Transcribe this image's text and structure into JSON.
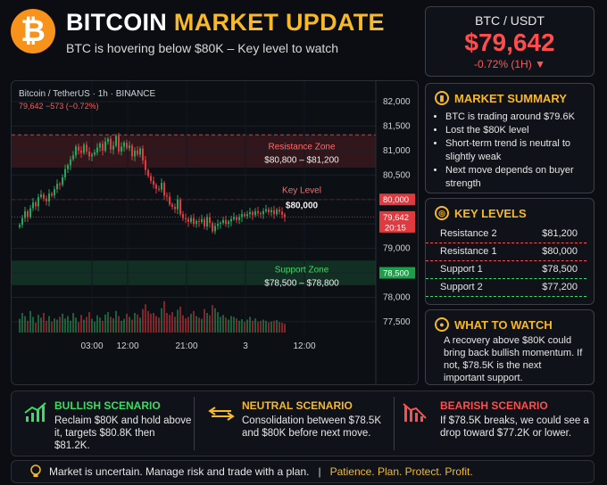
{
  "header": {
    "title_white": "BITCOIN",
    "title_yellow": "MARKET UPDATE",
    "subtitle": "BTC is hovering below $80K – Key level to watch",
    "logo_symbol": "₿"
  },
  "price_box": {
    "pair": "BTC / USDT",
    "price": "$79,642",
    "change": "-0.72% (1H)",
    "change_arrow": "▼"
  },
  "chart_header": {
    "symbol": "Bitcoin / TetherUS · 1h · BINANCE",
    "quote": "79,642  −573 (−0.72%)"
  },
  "zones": {
    "resistance_title": "Resistance Zone",
    "resistance_range": "$80,800 – $81,200",
    "key_title": "Key Level",
    "key_value": "$80,000",
    "support_title": "Support Zone",
    "support_range": "$78,500 – $78,800"
  },
  "price_tags": {
    "key": "80,000",
    "current": "79,642",
    "countdown": "20:15",
    "support": "78,500"
  },
  "chart_data": {
    "type": "candlestick",
    "y_ticks": [
      "82,000",
      "81,500",
      "81,000",
      "80,500",
      "80,000",
      "79,500",
      "79,000",
      "78,500",
      "78,000",
      "77,500"
    ],
    "y_tick_values": [
      82000,
      81500,
      81000,
      80500,
      80000,
      79500,
      79000,
      78500,
      78000,
      77500
    ],
    "x_ticks": [
      "03:00",
      "12:00",
      "21:00",
      "3",
      "12:00"
    ],
    "ylim": [
      77280,
      82200
    ],
    "resistance_zone": [
      80800,
      81200
    ],
    "key_level": 80000,
    "support_zone": [
      78500,
      78800
    ],
    "current_price": 79642,
    "closes": [
      79480,
      79620,
      79760,
      79640,
      79820,
      79940,
      79860,
      80050,
      80100,
      80020,
      79960,
      80120,
      80080,
      80210,
      80320,
      80300,
      80450,
      80620,
      80700,
      80820,
      80900,
      81080,
      81000,
      80950,
      81120,
      80980,
      80880,
      80920,
      80960,
      81060,
      81140,
      81000,
      81180,
      81240,
      81020,
      81100,
      81300,
      80980,
      81080,
      81160,
      81050,
      81100,
      80880,
      81000,
      80920,
      81040,
      80800,
      80600,
      80480,
      80380,
      80300,
      80220,
      80200,
      80340,
      80080,
      80060,
      79900,
      79850,
      79800,
      80000,
      79700,
      79620,
      79600,
      79540,
      79620,
      79500,
      79560,
      79540,
      79600,
      79450,
      79640,
      79520,
      79350,
      79460,
      79500,
      79520,
      79580,
      79500,
      79550,
      79600,
      79640,
      79580,
      79640,
      79700,
      79660,
      79700,
      79740,
      79680,
      79760,
      79720,
      79700,
      79760,
      79800,
      79740,
      79780,
      79700,
      79790,
      79750,
      79690,
      79642
    ],
    "volumes": [
      0.35,
      0.5,
      0.42,
      0.3,
      0.55,
      0.4,
      0.25,
      0.45,
      0.38,
      0.5,
      0.3,
      0.42,
      0.28,
      0.36,
      0.33,
      0.4,
      0.48,
      0.36,
      0.42,
      0.3,
      0.5,
      0.38,
      0.27,
      0.45,
      0.33,
      0.4,
      0.52,
      0.35,
      0.28,
      0.44,
      0.38,
      0.3,
      0.46,
      0.52,
      0.4,
      0.36,
      0.55,
      0.42,
      0.3,
      0.35,
      0.48,
      0.4,
      0.33,
      0.5,
      0.46,
      0.38,
      0.6,
      0.72,
      0.55,
      0.48,
      0.5,
      0.42,
      0.38,
      0.62,
      0.8,
      0.5,
      0.45,
      0.52,
      0.4,
      0.58,
      0.66,
      0.44,
      0.36,
      0.4,
      0.48,
      0.55,
      0.42,
      0.38,
      0.35,
      0.6,
      0.5,
      0.44,
      0.7,
      0.62,
      0.52,
      0.4,
      0.45,
      0.38,
      0.33,
      0.42,
      0.4,
      0.36,
      0.3,
      0.34,
      0.28,
      0.33,
      0.4,
      0.3,
      0.36,
      0.28,
      0.3,
      0.33,
      0.3,
      0.26,
      0.28,
      0.3,
      0.32,
      0.27,
      0.25,
      0.22
    ]
  },
  "summary": {
    "title": "MARKET SUMMARY",
    "items": [
      "BTC is trading around $79.6K",
      "Lost the $80K level",
      "Short-term trend is neutral to slightly weak",
      "Next move depends on buyer strength"
    ]
  },
  "key_levels": {
    "title": "KEY LEVELS",
    "rows": [
      {
        "label": "Resistance 2",
        "value": "$81,200",
        "color": "#ff4d4d"
      },
      {
        "label": "Resistance 1",
        "value": "$80,000",
        "color": "#ff4d4d"
      },
      {
        "label": "Support 1",
        "value": "$78,500",
        "color": "#3ddc64"
      },
      {
        "label": "Support 2",
        "value": "$77,200",
        "color": "#3ddc64"
      }
    ]
  },
  "watch": {
    "title": "WHAT TO WATCH",
    "text": "A recovery above $80K could bring back bullish momentum. If not, $78.5K is the next important support."
  },
  "scenarios": {
    "bullish": {
      "title": "BULLISH SCENARIO",
      "text": "Reclaim $80K and hold above it, targets $80.8K then $81.2K.",
      "color": "#3ddc64"
    },
    "neutral": {
      "title": "NEUTRAL SCENARIO",
      "text": "Consolidation between $78.5K and $80K before next move.",
      "color": "#f7b928"
    },
    "bearish": {
      "title": "BEARISH SCENARIO",
      "text": "If $78.5K breaks, we could see a drop toward $77.2K or lower.",
      "color": "#ff4d4d"
    }
  },
  "footer": {
    "text": "Market is uncertain. Manage risk and trade with a plan.",
    "separator": "|",
    "motto": "Patience. Plan. Protect. Profit."
  },
  "colors": {
    "up": "#26a65b",
    "down": "#e0393e",
    "accent": "#f7b928"
  }
}
